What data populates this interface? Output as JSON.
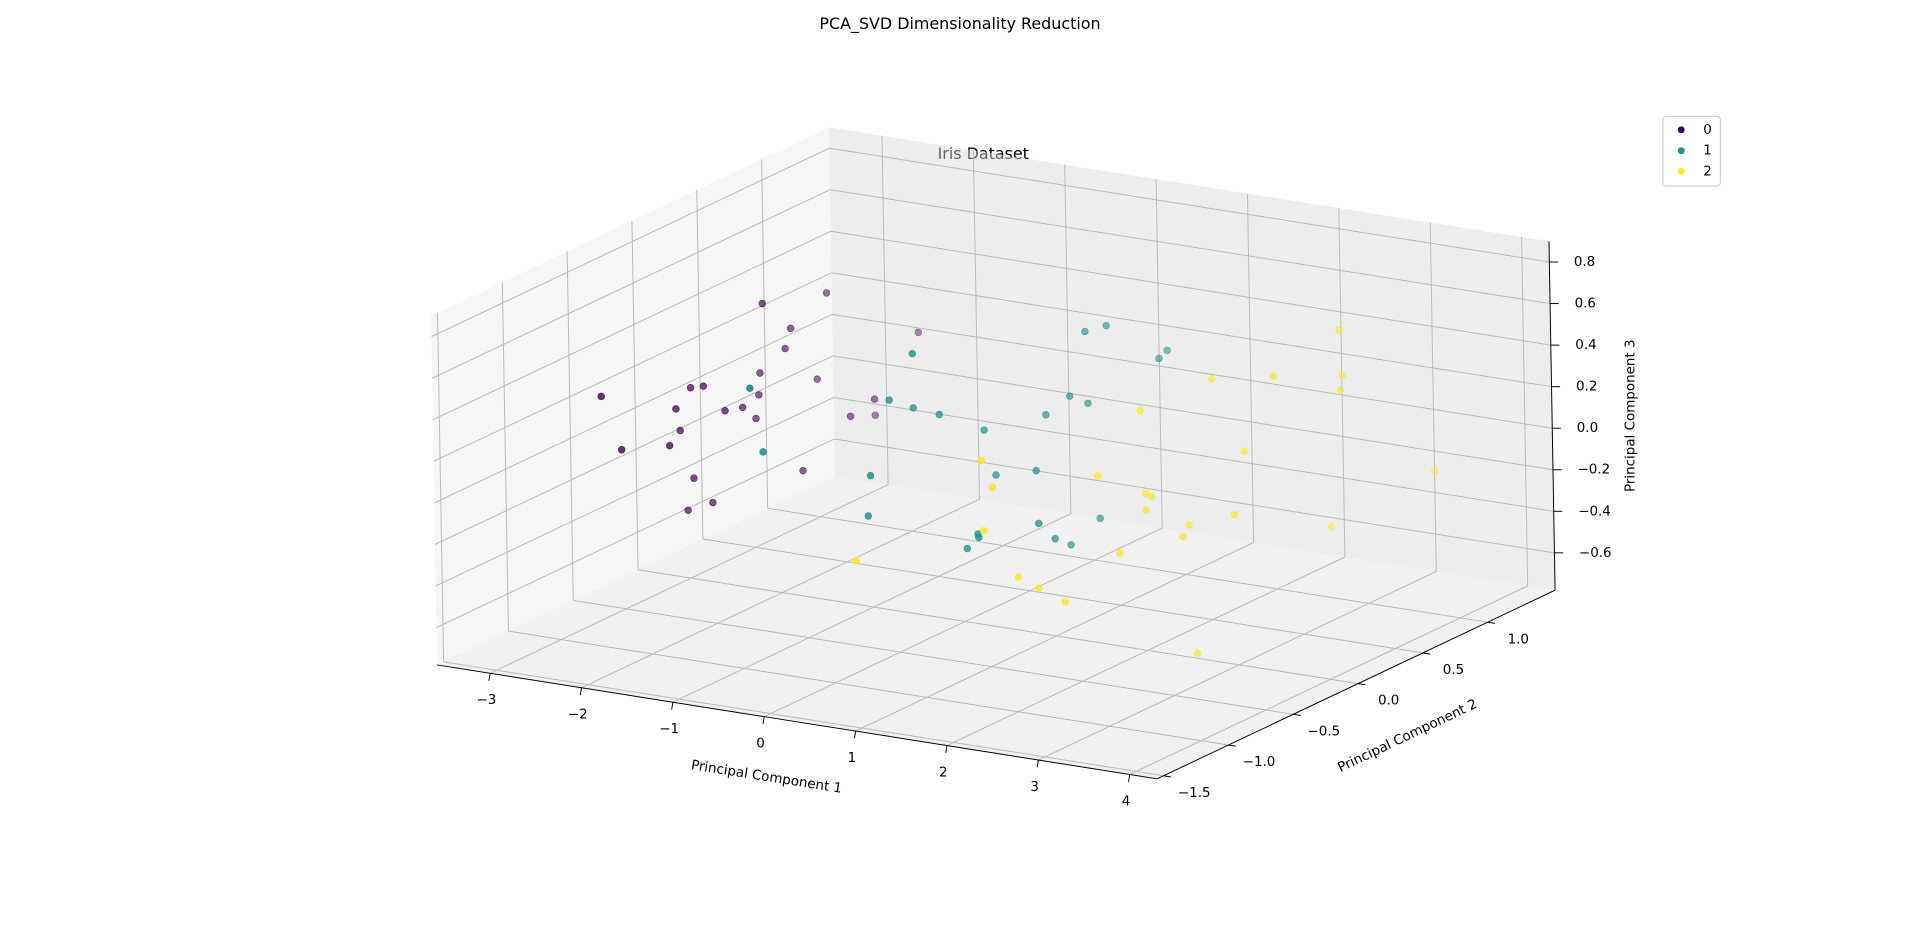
{
  "chart_data": {
    "type": "scatter3d",
    "title": "PCA_SVD Dimensionality Reduction",
    "subtitle": "Iris Dataset",
    "xlabel": "Principal Component 1",
    "ylabel": "Principal Component 2",
    "zlabel": "Principal Component 3",
    "xlim": [
      -3.58,
      4.3
    ],
    "ylim": [
      -1.55,
      1.52
    ],
    "zlim": [
      -0.78,
      0.9
    ],
    "xticks": [
      {
        "value": -3,
        "label": "−3"
      },
      {
        "value": -2,
        "label": "−2"
      },
      {
        "value": -1,
        "label": "−1"
      },
      0,
      1,
      2,
      3,
      4
    ],
    "yticks": [
      {
        "value": -1.5,
        "label": "−1.5"
      },
      {
        "value": -1.0,
        "label": "−1.0"
      },
      {
        "value": -0.5,
        "label": "−0.5"
      },
      {
        "value": 0.0,
        "label": "0.0"
      },
      {
        "value": 0.5,
        "label": "0.5"
      },
      {
        "value": 1.0,
        "label": "1.0"
      }
    ],
    "zticks": [
      {
        "value": -0.6,
        "label": "−0.6"
      },
      {
        "value": -0.4,
        "label": "−0.4"
      },
      {
        "value": -0.2,
        "label": "−0.2"
      },
      {
        "value": 0.0,
        "label": "0.0"
      },
      0.2,
      0.4,
      0.6,
      0.8
    ],
    "grid": true,
    "legend": "upper right",
    "series": [
      {
        "name": "0",
        "color": "#440154",
        "x": [
          -2.68,
          -2.71,
          -2.89,
          -2.75,
          -2.73,
          -2.28,
          -2.82,
          -2.63,
          -2.89,
          -2.67,
          -2.51,
          -2.61,
          -2.79,
          -3.22,
          -2.64,
          -2.38,
          -2.62,
          -2.65,
          -2.2,
          -2.59,
          -2.31,
          -2.54,
          -3.22,
          -2.31,
          -2.86
        ],
        "y": [
          0.32,
          -0.18,
          -0.14,
          -0.32,
          0.33,
          0.74,
          -0.09,
          0.16,
          -0.59,
          -0.11,
          0.65,
          0.01,
          -0.24,
          -0.51,
          1.18,
          1.34,
          0.81,
          0.31,
          0.87,
          0.51,
          0.39,
          0.43,
          0.14,
          0.1,
          0.08
        ],
        "z": [
          0.03,
          0.21,
          -0.02,
          -0.03,
          -0.09,
          -0.17,
          -0.26,
          0.02,
          0.02,
          0.2,
          0.02,
          0.05,
          0.12,
          0.23,
          -0.32,
          0.05,
          0.38,
          0.14,
          -0.12,
          0.3,
          -0.33,
          0.23,
          -0.51,
          0.56,
          -0.43
        ]
      },
      {
        "name": "1",
        "color": "#21918c",
        "x": [
          1.28,
          0.93,
          1.46,
          0.18,
          1.09,
          0.64,
          1.1,
          -0.75,
          1.04,
          -0.01,
          -0.51,
          0.51,
          0.26,
          0.98,
          -0.17,
          0.93,
          0.66,
          0.23,
          0.94,
          0.04,
          1.12,
          0.36,
          1.3,
          0.92,
          0.71
        ],
        "y": [
          0.69,
          0.32,
          0.5,
          -0.83,
          0.07,
          -0.42,
          0.28,
          -1.0,
          0.23,
          -0.72,
          -1.26,
          -0.1,
          -0.55,
          -0.12,
          -0.25,
          0.47,
          -0.35,
          -0.33,
          -0.54,
          -0.58,
          -0.08,
          -0.08,
          -0.33,
          0.18,
          0.15
        ],
        "z": [
          0.41,
          0.24,
          0.44,
          0.18,
          0.36,
          -0.26,
          -0.29,
          0.28,
          0.62,
          -0.06,
          0.68,
          -0.01,
          0.69,
          0.05,
          0.31,
          0.57,
          -0.21,
          0.33,
          -0.15,
          0.46,
          -0.28,
          0.19,
          -0.12,
          -0.4,
          0.22
        ]
      },
      {
        "name": "2",
        "color": "#fde725",
        "x": [
          2.53,
          1.41,
          2.61,
          1.97,
          2.35,
          3.4,
          0.52,
          2.93,
          2.32,
          2.92,
          1.66,
          1.8,
          2.16,
          1.34,
          1.59,
          1.9,
          1.95,
          3.49,
          3.79,
          1.3,
          2.43,
          1.2,
          3.5,
          1.39,
          2.28
        ],
        "y": [
          0.01,
          -0.57,
          0.34,
          -0.18,
          0.04,
          0.55,
          -1.19,
          0.35,
          -0.25,
          0.78,
          0.24,
          -0.22,
          0.22,
          -0.78,
          -0.54,
          0.12,
          0.04,
          1.18,
          0.26,
          -0.76,
          0.38,
          -0.61,
          0.46,
          -0.2,
          0.33
        ],
        "z": [
          -0.76,
          -0.3,
          0.12,
          -0.26,
          -0.22,
          0.48,
          -0.1,
          0.5,
          0.47,
          -0.35,
          -0.2,
          0.11,
          -0.23,
          -0.02,
          -0.35,
          -0.08,
          -0.04,
          -0.16,
          0.52,
          0.31,
          -0.21,
          0.13,
          0.73,
          -0.53,
          0.45
        ]
      }
    ]
  }
}
